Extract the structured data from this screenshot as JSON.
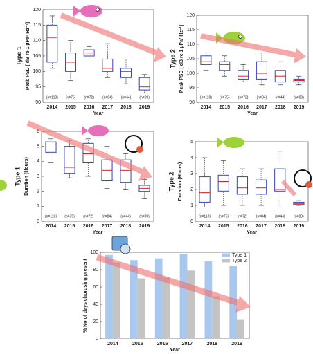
{
  "chart_data": [
    {
      "type": "box",
      "title": "Type 1",
      "ylabel": "Peak PSD [ dB re 1 µPa² Hz⁻¹]",
      "xlabel": "Year",
      "categories": [
        "2014",
        "2015",
        "2016",
        "2017",
        "2018",
        "2019"
      ],
      "annotations": [
        "(n=118)",
        "(n=75)",
        "(n=72)",
        "(n=84)",
        "(n=44)",
        "(n=89)"
      ],
      "boxes": [
        {
          "whislo": 101,
          "q1": 103,
          "med": 111,
          "q3": 115,
          "whishi": 118
        },
        {
          "whislo": 97,
          "q1": 100,
          "med": 103,
          "q3": 106,
          "whishi": 110
        },
        {
          "whislo": 104,
          "q1": 105,
          "med": 106,
          "q3": 107,
          "whishi": 108
        },
        {
          "whislo": 98,
          "q1": 100,
          "med": 101,
          "q3": 104,
          "whishi": 109
        },
        {
          "whislo": 96,
          "q1": 98,
          "med": 100,
          "q3": 101,
          "whishi": 104
        },
        {
          "whislo": 93,
          "q1": 94,
          "med": 95,
          "q3": 98,
          "whishi": 99
        }
      ],
      "color": "#3344bb",
      "median_color": "#dd2222",
      "ylim": [
        90,
        120
      ],
      "yticks": [
        90,
        95,
        100,
        105,
        110,
        115,
        120
      ]
    },
    {
      "type": "box",
      "title": "Type 2",
      "ylabel": "Peak PSD [ dB re 1 µPa² Hz⁻¹]",
      "xlabel": "Year",
      "categories": [
        "2014",
        "2015",
        "2016",
        "2017",
        "2018",
        "2019"
      ],
      "annotations": [
        "(n=118)",
        "(n=75)",
        "(n=72)",
        "(n=84)",
        "(n=44)",
        "(n=89)"
      ],
      "boxes": [
        {
          "whislo": 101,
          "q1": 103,
          "med": 104,
          "q3": 106,
          "whishi": 107
        },
        {
          "whislo": 99,
          "q1": 101,
          "med": 103,
          "q3": 104,
          "whishi": 106
        },
        {
          "whislo": 97,
          "q1": 98,
          "med": 99,
          "q3": 101,
          "whishi": 103
        },
        {
          "whislo": 96,
          "q1": 98,
          "med": 100,
          "q3": 104,
          "whishi": 107
        },
        {
          "whislo": 96,
          "q1": 97,
          "med": 99,
          "q3": 101,
          "whishi": 104
        },
        {
          "whislo": 96,
          "q1": 97,
          "med": 97.5,
          "q3": 98,
          "whishi": 99
        }
      ],
      "color": "#3344bb",
      "median_color": "#dd2222",
      "ylim": [
        90,
        120
      ],
      "yticks": [
        90,
        95,
        100,
        105,
        110,
        115,
        120
      ]
    },
    {
      "type": "box",
      "title": "Type 1",
      "ylabel": "Duration (Hours)",
      "xlabel": "Year",
      "categories": [
        "2014",
        "2015",
        "2016",
        "2017",
        "2018",
        "2019"
      ],
      "annotations": [
        "(n=118)",
        "(n=75)",
        "(n=72)",
        "(n=84)",
        "(n=44)",
        "(n=89)"
      ],
      "boxes": [
        {
          "whislo": 3.9,
          "q1": 4.6,
          "med": 5.1,
          "q3": 5.3,
          "whishi": 5.5
        },
        {
          "whislo": 2.9,
          "q1": 3.2,
          "med": 3.6,
          "q3": 5.0,
          "whishi": 5.4
        },
        {
          "whislo": 3.0,
          "q1": 3.9,
          "med": 4.5,
          "q3": 5.2,
          "whishi": 5.5
        },
        {
          "whislo": 2.2,
          "q1": 2.7,
          "med": 3.4,
          "q3": 4.1,
          "whishi": 5.0
        },
        {
          "whislo": 2.1,
          "q1": 2.6,
          "med": 3.4,
          "q3": 4.1,
          "whishi": 4.5
        },
        {
          "whislo": 1.5,
          "q1": 2.0,
          "med": 2.2,
          "q3": 2.4,
          "whishi": 2.8
        }
      ],
      "color": "#3344bb",
      "median_color": "#dd2222",
      "ylim": [
        0,
        6
      ],
      "yticks": [
        0,
        1,
        2,
        3,
        4,
        5,
        6
      ]
    },
    {
      "type": "box",
      "title": "Type 2",
      "ylabel": "Duration (Hours)",
      "xlabel": "Year",
      "categories": [
        "2014",
        "2015",
        "2016",
        "2017",
        "2018",
        "2019"
      ],
      "annotations": [
        "(n=118)",
        "(n=75)",
        "(n=72)",
        "(n=84)",
        "(n=44)",
        "(n=89)"
      ],
      "boxes": [
        {
          "whislo": 0.9,
          "q1": 1.2,
          "med": 1.8,
          "q3": 2.8,
          "whishi": 4.0
        },
        {
          "whislo": 1.0,
          "q1": 1.9,
          "med": 2.5,
          "q3": 2.9,
          "whishi": 3.8
        },
        {
          "whislo": 1.0,
          "q1": 1.7,
          "med": 2.1,
          "q3": 2.8,
          "whishi": 3.3
        },
        {
          "whislo": 1.0,
          "q1": 1.7,
          "med": 2.1,
          "q3": 2.6,
          "whishi": 3.3
        },
        {
          "whislo": 0.9,
          "q1": 1.9,
          "med": 2.0,
          "q3": 3.3,
          "whishi": 4.4
        },
        {
          "whislo": 1.0,
          "q1": 1.05,
          "med": 1.1,
          "q3": 1.2,
          "whishi": 1.3
        }
      ],
      "color": "#3344bb",
      "median_color": "#dd2222",
      "ylim": [
        0,
        5
      ],
      "yticks": [
        0,
        1,
        2,
        3,
        4,
        5
      ]
    },
    {
      "type": "bar",
      "ylabel": "% No of days chorusing present",
      "xlabel": "Year",
      "categories": [
        "2014",
        "2015",
        "2016",
        "2017",
        "2018",
        "2019"
      ],
      "series": [
        {
          "name": "Type 1",
          "color": "#a9c8ee",
          "values": [
            97,
            91,
            93,
            98,
            90,
            84
          ]
        },
        {
          "name": "Type 2",
          "color": "#c4c4c4",
          "values": [
            88,
            70,
            71,
            79,
            49,
            22
          ]
        }
      ],
      "ylim": [
        0,
        100
      ],
      "yticks": [
        0,
        20,
        40,
        60,
        80,
        100
      ],
      "legend": "top-right"
    }
  ]
}
